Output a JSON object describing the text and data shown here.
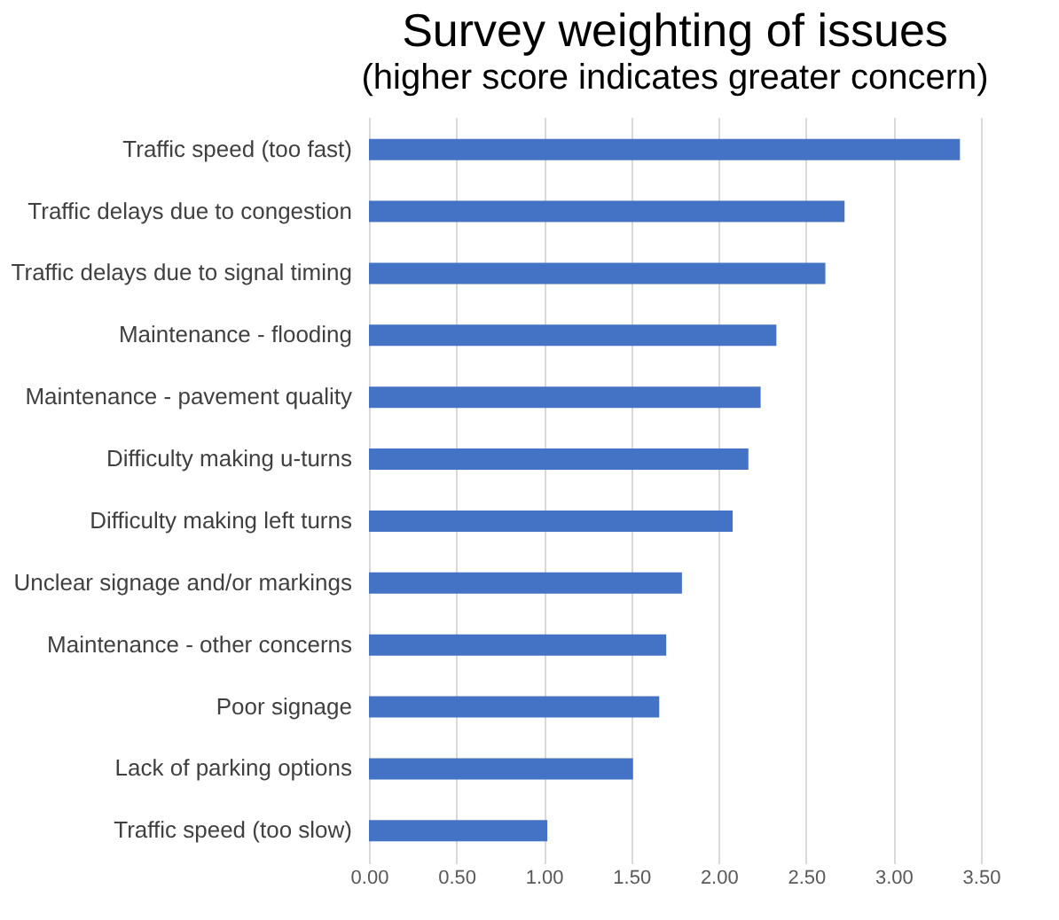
{
  "chart_data": {
    "type": "bar",
    "orientation": "horizontal",
    "title": "Survey weighting of issues",
    "subtitle": "(higher score indicates greater concern)",
    "categories": [
      "Traffic speed (too fast)",
      "Traffic delays due to congestion",
      "Traffic delays due to signal timing",
      "Maintenance - flooding",
      "Maintenance - pavement quality",
      "Difficulty making u-turns",
      "Difficulty making left turns",
      "Unclear signage and/or markings",
      "Maintenance - other concerns",
      "Poor signage",
      "Lack of parking options",
      "Traffic speed (too slow)"
    ],
    "values": [
      3.38,
      2.72,
      2.61,
      2.33,
      2.24,
      2.17,
      2.08,
      1.79,
      1.7,
      1.66,
      1.51,
      1.02
    ],
    "color": "#4472c4",
    "xlim": [
      0,
      3.5
    ],
    "xticks": [
      {
        "value": 0,
        "label": "0.00"
      },
      {
        "value": 0.5,
        "label": "0.50"
      },
      {
        "value": 1,
        "label": "1.00"
      },
      {
        "value": 1.5,
        "label": "1.50"
      },
      {
        "value": 2,
        "label": "2.00"
      },
      {
        "value": 2.5,
        "label": "2.50"
      },
      {
        "value": 3,
        "label": "3.00"
      },
      {
        "value": 3.5,
        "label": "3.50"
      }
    ],
    "grid": "x"
  }
}
